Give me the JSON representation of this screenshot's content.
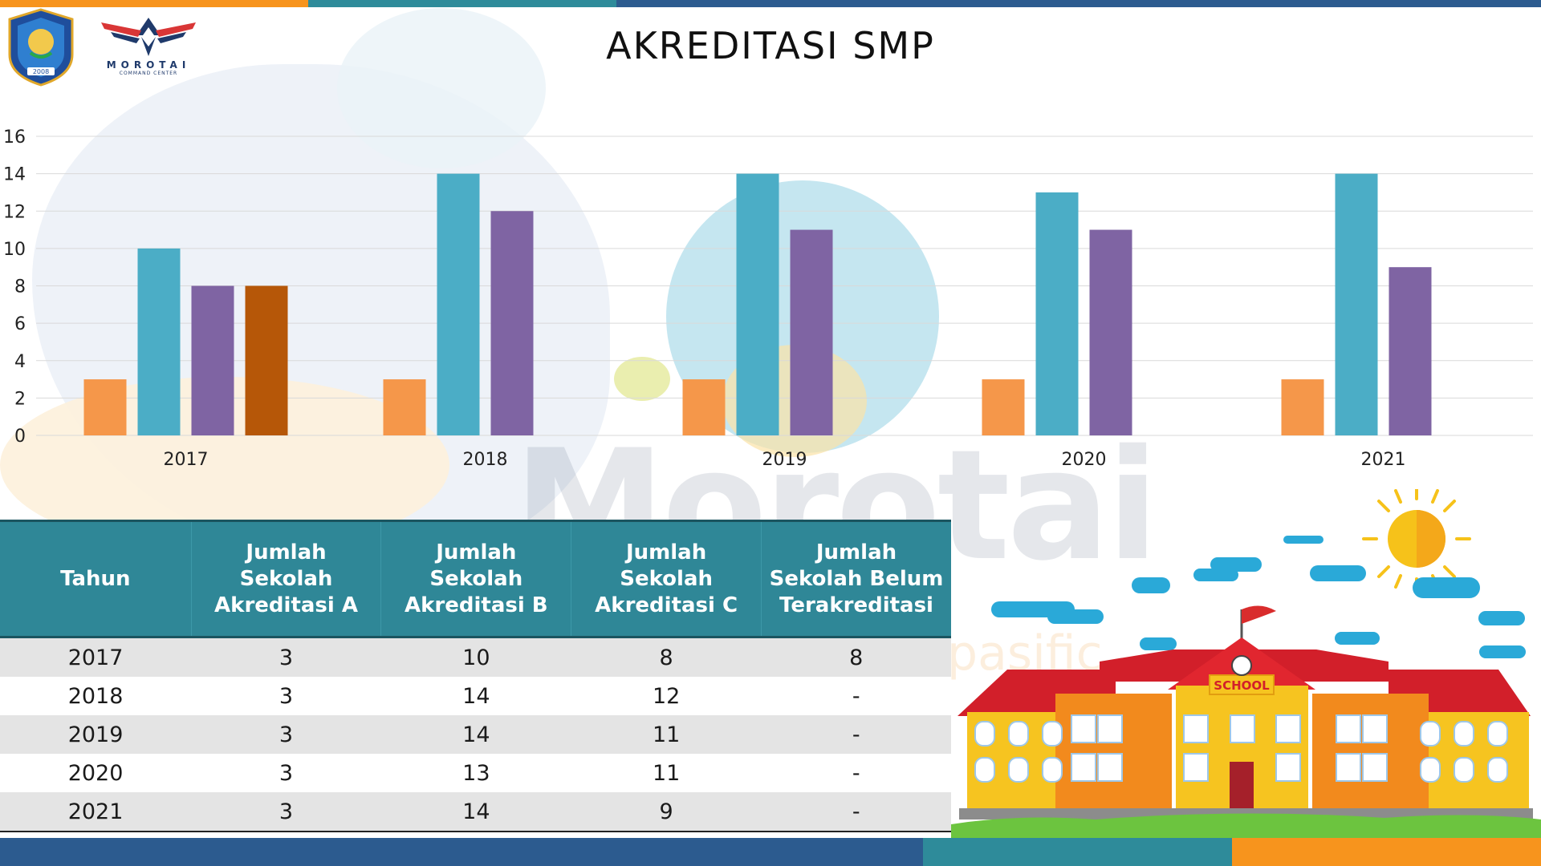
{
  "header": {
    "title": "AKREDITASI SMP",
    "logo_left_year": "2008",
    "brand_name": "MOROTAI",
    "brand_sub": "COMMAND CENTER"
  },
  "colors": {
    "series_a": "#f5974a",
    "series_b": "#4badc6",
    "series_c": "#7f64a3",
    "series_unaccredited": "#b65708",
    "table_header": "#2f8797",
    "bar_top": [
      "#f7941d",
      "#2e8b9a",
      "#2c5b8f"
    ]
  },
  "chart_data": {
    "type": "bar",
    "categories": [
      "2017",
      "2018",
      "2019",
      "2020",
      "2021"
    ],
    "series": [
      {
        "values": [
          3,
          3,
          3,
          3,
          3
        ]
      },
      {
        "values": [
          10,
          14,
          14,
          13,
          14
        ]
      },
      {
        "values": [
          8,
          12,
          11,
          11,
          9
        ]
      },
      {
        "values": [
          8,
          null,
          null,
          null,
          null
        ]
      }
    ],
    "y_ticks": [
      "0",
      "2",
      "4",
      "6",
      "8",
      "10",
      "12",
      "14",
      "16"
    ],
    "ylim": [
      0,
      16
    ],
    "grid": true,
    "legend": "none"
  },
  "table": {
    "headers": [
      "Tahun",
      "Jumlah Sekolah Akreditasi A",
      "Jumlah Sekolah Akreditasi B",
      "Jumlah Sekolah Akreditasi C",
      "Jumlah Sekolah Belum Terakreditasi"
    ],
    "rows": [
      [
        "2017",
        "3",
        "10",
        "8",
        "8"
      ],
      [
        "2018",
        "3",
        "14",
        "12",
        "-"
      ],
      [
        "2019",
        "3",
        "14",
        "11",
        "-"
      ],
      [
        "2020",
        "3",
        "13",
        "11",
        "-"
      ],
      [
        "2021",
        "3",
        "14",
        "9",
        "-"
      ]
    ]
  },
  "illustration": {
    "school_sign": "SCHOOL"
  },
  "background": {
    "watermark": "Morotai",
    "watermark_sub": "pasific"
  }
}
